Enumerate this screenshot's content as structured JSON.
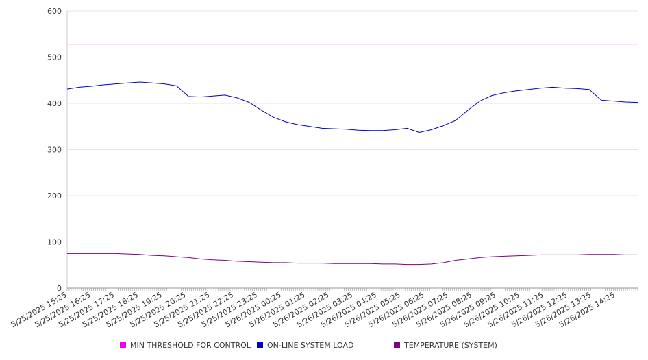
{
  "chart_data": {
    "type": "line",
    "title": "",
    "xlabel": "",
    "ylabel": "",
    "ylim": [
      0,
      600
    ],
    "yticks": [
      0,
      100,
      200,
      300,
      400,
      500,
      600
    ],
    "grid": "horizontal",
    "legend_position": "bottom",
    "x_tick_labels": [
      "5/25/2025 15:25",
      "5/25/2025 16:25",
      "5/25/2025 17:25",
      "5/25/2025 18:25",
      "5/25/2025 19:25",
      "5/25/2025 20:25",
      "5/25/2025 21:25",
      "5/25/2025 22:25",
      "5/25/2025 23:25",
      "5/26/2025 00:25",
      "5/26/2025 01:25",
      "5/26/2025 02:25",
      "5/26/2025 03:25",
      "5/26/2025 04:25",
      "5/26/2025 05:25",
      "5/26/2025 06:25",
      "5/26/2025 07:25",
      "5/26/2025 08:25",
      "5/26/2025 09:25",
      "5/26/2025 10:25",
      "5/26/2025 11:25",
      "5/26/2025 12:25",
      "5/26/2025 13:25",
      "5/26/2025 14:25"
    ],
    "x": [
      "5/25/2025 15:25",
      "5/25/2025 15:55",
      "5/25/2025 16:25",
      "5/25/2025 16:55",
      "5/25/2025 17:25",
      "5/25/2025 17:55",
      "5/25/2025 18:25",
      "5/25/2025 18:55",
      "5/25/2025 19:25",
      "5/25/2025 19:55",
      "5/25/2025 20:25",
      "5/25/2025 20:55",
      "5/25/2025 21:25",
      "5/25/2025 21:55",
      "5/25/2025 22:25",
      "5/25/2025 22:55",
      "5/25/2025 23:25",
      "5/25/2025 23:55",
      "5/26/2025 00:25",
      "5/26/2025 00:55",
      "5/26/2025 01:25",
      "5/26/2025 01:55",
      "5/26/2025 02:25",
      "5/26/2025 02:55",
      "5/26/2025 03:25",
      "5/26/2025 03:55",
      "5/26/2025 04:25",
      "5/26/2025 04:55",
      "5/26/2025 05:25",
      "5/26/2025 05:55",
      "5/26/2025 06:25",
      "5/26/2025 06:55",
      "5/26/2025 07:25",
      "5/26/2025 07:55",
      "5/26/2025 08:25",
      "5/26/2025 08:55",
      "5/26/2025 09:25",
      "5/26/2025 09:55",
      "5/26/2025 10:25",
      "5/26/2025 10:55",
      "5/26/2025 11:25",
      "5/26/2025 11:55",
      "5/26/2025 12:25",
      "5/26/2025 12:55",
      "5/26/2025 13:25",
      "5/26/2025 13:55",
      "5/26/2025 14:25",
      "5/26/2025 14:55"
    ],
    "series": [
      {
        "name": "MIN THRESHOLD FOR CONTROL",
        "color": "#ee00ee",
        "values": [
          528,
          528,
          528,
          528,
          528,
          528,
          528,
          528,
          528,
          528,
          528,
          528,
          528,
          528,
          528,
          528,
          528,
          528,
          528,
          528,
          528,
          528,
          528,
          528,
          528,
          528,
          528,
          528,
          528,
          528,
          528,
          528,
          528,
          528,
          528,
          528,
          528,
          528,
          528,
          528,
          528,
          528,
          528,
          528,
          528,
          528,
          528,
          528
        ]
      },
      {
        "name": "ON-LINE SYSTEM LOAD",
        "color": "#0000cc",
        "values": [
          431,
          435,
          437,
          440,
          442,
          444,
          446,
          444,
          442,
          438,
          415,
          414,
          416,
          418,
          412,
          402,
          385,
          370,
          360,
          354,
          350,
          346,
          345,
          344,
          342,
          341,
          341,
          343,
          346,
          337,
          343,
          352,
          363,
          385,
          405,
          417,
          423,
          427,
          430,
          433,
          435,
          433,
          432,
          430,
          407,
          405,
          403,
          402
        ]
      },
      {
        "name": "TEMPERATURE (SYSTEM)",
        "color": "#800080",
        "values": [
          75,
          75,
          75,
          75,
          75,
          74,
          73,
          71,
          70,
          68,
          66,
          63,
          61,
          60,
          58,
          57,
          56,
          55,
          55,
          54,
          54,
          54,
          53,
          53,
          53,
          53,
          52,
          52,
          51,
          51,
          52,
          55,
          60,
          63,
          66,
          68,
          69,
          70,
          71,
          72,
          72,
          72,
          72,
          73,
          73,
          73,
          72,
          72
        ]
      }
    ]
  }
}
